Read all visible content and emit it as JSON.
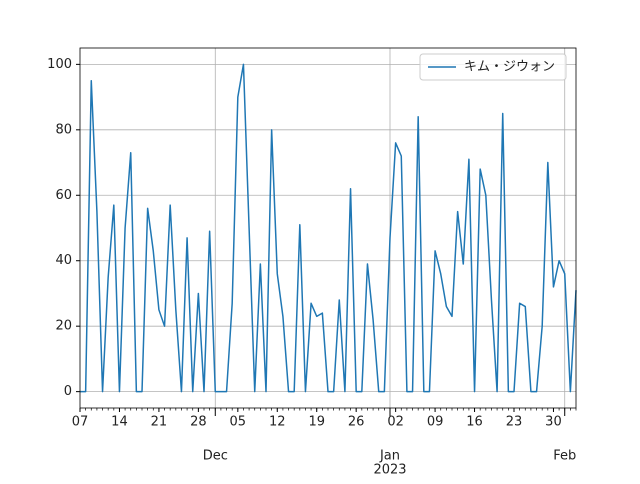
{
  "chart_data": {
    "type": "line",
    "x": [
      0,
      1,
      2,
      3,
      4,
      5,
      6,
      7,
      8,
      9,
      10,
      11,
      12,
      13,
      14,
      15,
      16,
      17,
      18,
      19,
      20,
      21,
      22,
      23,
      24,
      25,
      26,
      27,
      28,
      29,
      30,
      31,
      32,
      33,
      34,
      35,
      36,
      37,
      38,
      39,
      40,
      41,
      42,
      43,
      44,
      45,
      46,
      47,
      48,
      49,
      50,
      51,
      52,
      53,
      54,
      55,
      56,
      57,
      58,
      59,
      60,
      61,
      62,
      63,
      64,
      65,
      66,
      67,
      68,
      69,
      70,
      71,
      72,
      73,
      74,
      75,
      76,
      77,
      78,
      79,
      80,
      81,
      82,
      83,
      84,
      85,
      86,
      87,
      88
    ],
    "series": [
      {
        "name": "キム・ジウォン",
        "color": "#1f77b4",
        "values": [
          0,
          0,
          95,
          55,
          0,
          35,
          57,
          0,
          50,
          73,
          0,
          0,
          56,
          43,
          25,
          20,
          57,
          25,
          0,
          47,
          0,
          30,
          0,
          49,
          0,
          0,
          0,
          27,
          90,
          100,
          50,
          0,
          39,
          0,
          80,
          36,
          23,
          0,
          0,
          51,
          0,
          27,
          23,
          24,
          0,
          0,
          28,
          0,
          62,
          0,
          0,
          39,
          22,
          0,
          0,
          47,
          76,
          72,
          0,
          0,
          84,
          0,
          0,
          43,
          36,
          26,
          23,
          55,
          39,
          71,
          0,
          68,
          60,
          28,
          0,
          85,
          0,
          0,
          27,
          26,
          0,
          0,
          20,
          70,
          32,
          40,
          36,
          0,
          31
        ]
      }
    ],
    "xlim": [
      0,
      88
    ],
    "ylim": [
      -5,
      105
    ],
    "yticks": [
      0,
      20,
      40,
      60,
      80,
      100
    ],
    "xticks": [
      {
        "value": 0,
        "label": "07"
      },
      {
        "value": 7,
        "label": "14"
      },
      {
        "value": 14,
        "label": "21"
      },
      {
        "value": 21,
        "label": "28"
      },
      {
        "value": 28,
        "label": "05"
      },
      {
        "value": 35,
        "label": "12"
      },
      {
        "value": 42,
        "label": "19"
      },
      {
        "value": 49,
        "label": "26"
      },
      {
        "value": 56,
        "label": "02"
      },
      {
        "value": 63,
        "label": "09"
      },
      {
        "value": 70,
        "label": "16"
      },
      {
        "value": 77,
        "label": "23"
      },
      {
        "value": 84,
        "label": "30"
      }
    ],
    "xticks_major": [
      {
        "value": 24,
        "label": "Dec"
      },
      {
        "value": 55,
        "label": "Jan"
      },
      {
        "value": 86,
        "label": "Feb"
      }
    ],
    "x_offset_label": "2023",
    "grid": true,
    "legend": "upper right"
  }
}
